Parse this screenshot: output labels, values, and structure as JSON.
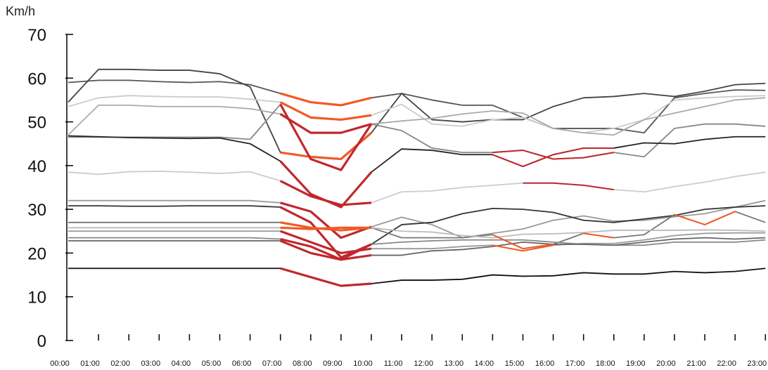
{
  "chart_data": {
    "type": "line",
    "ylabel": "Km/h",
    "xlabel": "",
    "title": "",
    "ylim": [
      0,
      70
    ],
    "yticks": [
      0,
      10,
      20,
      30,
      40,
      50,
      60,
      70
    ],
    "categories": [
      "00:00",
      "01:00",
      "02:00",
      "03:00",
      "04:00",
      "05:00",
      "06:00",
      "07:00",
      "08:00",
      "09:00",
      "10:00",
      "11:00",
      "12:00",
      "13:00",
      "14:00",
      "15:00",
      "16:00",
      "17:00",
      "18:00",
      "19:00",
      "20:00",
      "21:00",
      "22:00",
      "23:00"
    ],
    "grid": false,
    "legend": "none",
    "highlight_colors": {
      "dark_red": "#c1272d",
      "orange": "#f15a24"
    },
    "series": [
      {
        "color": "#555555",
        "values": [
          59,
          59.5,
          59.5,
          59.2,
          59,
          59.2,
          58.5,
          56.5,
          54.5,
          53.8,
          55.5,
          56.5,
          55,
          53.8,
          53.8,
          51,
          48.5,
          48.5,
          48.5,
          47.5,
          55.5,
          56.5,
          57.3,
          57.2
        ],
        "highlights": [
          {
            "from": 7,
            "to": 10,
            "color": "orange"
          }
        ]
      },
      {
        "color": "#444444",
        "values": [
          54.5,
          62,
          62,
          61.8,
          61.8,
          61,
          58,
          43,
          42,
          41.5,
          47.5,
          56.5,
          50.5,
          50,
          50.5,
          50.5,
          53.5,
          55.5,
          55.8,
          56.5,
          55.8,
          57,
          58.5,
          58.8
        ],
        "highlights": [
          {
            "from": 7,
            "to": 10,
            "color": "orange"
          }
        ]
      },
      {
        "color": "#cccccc",
        "values": [
          53.5,
          55.5,
          56,
          55.8,
          55.7,
          55.7,
          55.2,
          54.5,
          51,
          50.5,
          51.5,
          54,
          49.5,
          49,
          50.5,
          51,
          48.5,
          47.5,
          48.5,
          50.5,
          55,
          55.5,
          55.8,
          56
        ],
        "highlights": [
          {
            "from": 7,
            "to": 10,
            "color": "orange"
          }
        ]
      },
      {
        "color": "#aaaaaa",
        "values": [
          47,
          53.8,
          53.8,
          53.5,
          53.5,
          53.5,
          53,
          51.8,
          47.5,
          47.5,
          49.5,
          50.2,
          50.8,
          51.8,
          52.5,
          52,
          48.5,
          47.5,
          47,
          50.5,
          52,
          53.5,
          55,
          55.5
        ],
        "highlights": [
          {
            "from": 7,
            "to": 10,
            "color": "dark_red"
          }
        ]
      },
      {
        "color": "#888888",
        "values": [
          46.5,
          46.5,
          46.5,
          46.5,
          46.5,
          46.5,
          46,
          54,
          41.5,
          39,
          49.5,
          48,
          44,
          43,
          43,
          43.5,
          41.5,
          41.8,
          43,
          42,
          48.5,
          49.5,
          49.5,
          49
        ],
        "highlights": [
          {
            "from": 7,
            "to": 10,
            "color": "dark_red"
          },
          {
            "from": 14,
            "to": 18,
            "color": "dark_red"
          }
        ]
      },
      {
        "color": "#222222",
        "values": [
          46.8,
          46.6,
          46.4,
          46.3,
          46.2,
          46.3,
          45,
          41,
          33.5,
          30.5,
          38.5,
          43.8,
          43.5,
          42.5,
          42.5,
          39.8,
          42.5,
          44,
          44,
          45.2,
          45,
          46,
          46.6,
          46.6
        ],
        "highlights": [
          {
            "from": 7,
            "to": 10,
            "color": "dark_red"
          },
          {
            "from": 14,
            "to": 18,
            "color": "dark_red"
          }
        ]
      },
      {
        "color": "#cccccc",
        "values": [
          38.5,
          38,
          38.6,
          38.7,
          38.5,
          38.2,
          38.6,
          36.5,
          33,
          31,
          31.5,
          34,
          34.2,
          35,
          35.5,
          36,
          36,
          35.5,
          34.5,
          34,
          35.2,
          36.2,
          37.5,
          38.5
        ],
        "highlights": [
          {
            "from": 7,
            "to": 10,
            "color": "dark_red"
          },
          {
            "from": 15,
            "to": 18,
            "color": "dark_red"
          }
        ]
      },
      {
        "color": "#999999",
        "values": [
          32,
          32,
          32,
          32,
          32,
          32,
          32,
          31.5,
          29.5,
          23.5,
          26,
          28.2,
          26.5,
          23.5,
          24.5,
          25.5,
          27.5,
          28.5,
          27.3,
          27.5,
          28.3,
          29,
          30.5,
          32
        ],
        "highlights": [
          {
            "from": 7,
            "to": 10,
            "color": "dark_red"
          }
        ]
      },
      {
        "color": "#333333",
        "values": [
          30.8,
          30.8,
          30.7,
          30.7,
          30.8,
          30.8,
          30.8,
          30.5,
          27,
          19,
          22,
          26.5,
          27,
          29,
          30.2,
          30,
          29.3,
          27.5,
          27,
          27.8,
          28.6,
          30,
          30.5,
          30.8
        ],
        "highlights": [
          {
            "from": 7,
            "to": 10,
            "color": "dark_red"
          }
        ]
      },
      {
        "color": "#777777",
        "values": [
          27,
          27,
          27,
          27,
          27,
          27,
          27,
          27,
          25.8,
          25.2,
          25.8,
          23.5,
          23.5,
          23.5,
          24.2,
          21,
          22,
          24.5,
          23.5,
          24.2,
          28.8,
          26.5,
          29.5,
          27
        ],
        "highlights": [
          {
            "from": 7,
            "to": 10,
            "color": "orange"
          },
          {
            "from": 14,
            "to": 16,
            "color": "orange"
          },
          {
            "from": 17,
            "to": 18,
            "color": "orange"
          },
          {
            "from": 20,
            "to": 22,
            "color": "orange"
          }
        ]
      },
      {
        "color": "#bbbbbb",
        "values": [
          25.8,
          25.8,
          25.8,
          25.8,
          25.8,
          25.8,
          25.8,
          25.8,
          25.5,
          25.8,
          25.8,
          25,
          24.8,
          24,
          23.5,
          24.3,
          24.4,
          24.7,
          25.2,
          25.2,
          25.2,
          25.3,
          25.2,
          25
        ],
        "highlights": [
          {
            "from": 7,
            "to": 10,
            "color": "orange"
          }
        ]
      },
      {
        "color": "#999999",
        "values": [
          25,
          25,
          25,
          25,
          25,
          25,
          25,
          25,
          22.5,
          20,
          21,
          21,
          21,
          21.5,
          21.8,
          20.5,
          21.8,
          22.2,
          22.2,
          23,
          24,
          24.5,
          24.6,
          24.6
        ],
        "highlights": [
          {
            "from": 7,
            "to": 10,
            "color": "dark_red"
          },
          {
            "from": 14,
            "to": 16,
            "color": "orange"
          }
        ]
      },
      {
        "color": "#888888",
        "values": [
          23.5,
          23.5,
          23.5,
          23.5,
          23.5,
          23.5,
          23.5,
          23.2,
          21.5,
          18.5,
          22,
          22.5,
          22.8,
          23,
          23,
          23,
          22.5,
          22,
          21.8,
          21.8,
          22.5,
          22.5,
          22.5,
          23
        ],
        "highlights": [
          {
            "from": 7,
            "to": 10,
            "color": "dark_red"
          }
        ]
      },
      {
        "color": "#666666",
        "values": [
          22.8,
          22.8,
          22.8,
          22.8,
          22.8,
          22.8,
          22.8,
          22.8,
          20,
          18.5,
          19.5,
          19.5,
          20.5,
          20.8,
          21.5,
          22.5,
          22,
          22,
          21.8,
          22.5,
          23.2,
          23.5,
          23.2,
          23.5
        ],
        "highlights": [
          {
            "from": 7,
            "to": 10,
            "color": "dark_red"
          }
        ]
      },
      {
        "color": "#111111",
        "values": [
          16.5,
          16.5,
          16.5,
          16.5,
          16.5,
          16.5,
          16.5,
          16.5,
          14.5,
          12.5,
          13,
          13.8,
          13.8,
          14,
          15,
          14.7,
          14.8,
          15.5,
          15.2,
          15.2,
          15.8,
          15.5,
          15.8,
          16.5
        ],
        "highlights": [
          {
            "from": 7,
            "to": 10,
            "color": "dark_red"
          }
        ]
      }
    ]
  }
}
